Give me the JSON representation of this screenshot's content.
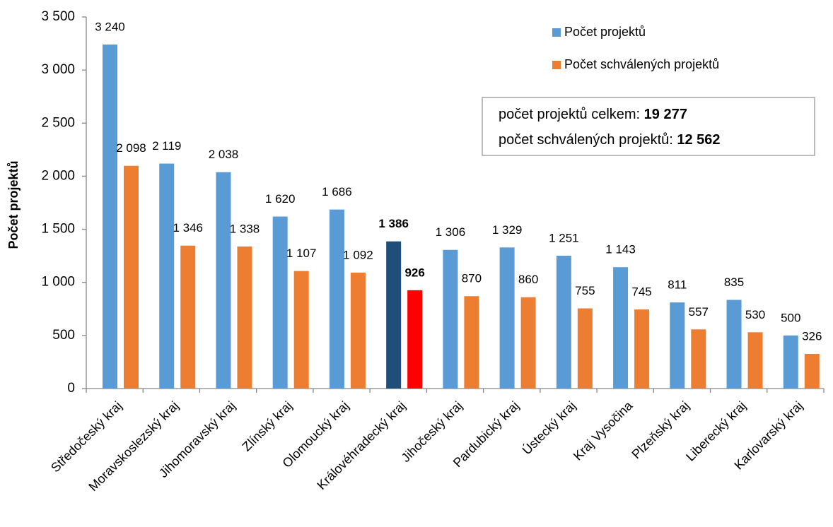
{
  "chart_data": {
    "type": "bar",
    "y_label": "Počet projektů",
    "categories": [
      "Středočeský kraj",
      "Moravskoslezský kraj",
      "Jihomoravský kraj",
      "Zlínský kraj",
      "Olomoucký kraj",
      "Královéhradecký kraj",
      "Jihočeský kraj",
      "Pardubický kraj",
      "Ústecký kraj",
      "Kraj Vysočina",
      "Plzeňský kraj",
      "Liberecký kraj",
      "Karlovarský kraj"
    ],
    "highlight_category": "Královéhradecký kraj",
    "series": [
      {
        "name": "Počet projektů",
        "color": "#5b9bd5",
        "highlight_color": "#1f4e79",
        "values": [
          3240,
          2119,
          2038,
          1620,
          1686,
          1386,
          1306,
          1329,
          1251,
          1143,
          811,
          835,
          500
        ],
        "value_labels": [
          "3 240",
          "2 119",
          "2 038",
          "1 620",
          "1 686",
          "1 386",
          "1 306",
          "1 329",
          "1 251",
          "1 143",
          "811",
          "835",
          "500"
        ]
      },
      {
        "name": "Počet schválených projektů",
        "color": "#ed7d31",
        "highlight_color": "#ff0000",
        "values": [
          2098,
          1346,
          1338,
          1107,
          1092,
          926,
          870,
          860,
          755,
          745,
          557,
          530,
          326
        ],
        "value_labels": [
          "2 098",
          "1 346",
          "1 338",
          "1 107",
          "1 092",
          "926",
          "870",
          "860",
          "755",
          "745",
          "557",
          "530",
          "326"
        ]
      }
    ],
    "ylim": [
      0,
      3500
    ],
    "yticks": [
      0,
      500,
      {
        "value": 1000,
        "label": "1 000"
      },
      {
        "value": 1500,
        "label": "1 500"
      },
      {
        "value": 2000,
        "label": "2 000"
      },
      {
        "value": 2500,
        "label": "2 500"
      },
      {
        "value": 3000,
        "label": "3 000"
      },
      {
        "value": 3500,
        "label": "3 500"
      }
    ],
    "annotations": [
      {
        "text": "počet projektů celkem:",
        "value": 19277,
        "value_label": "19 277"
      },
      {
        "text": "počet schválených projektů:",
        "value": 12562,
        "value_label": "12 562"
      }
    ],
    "legend": "top-right"
  }
}
